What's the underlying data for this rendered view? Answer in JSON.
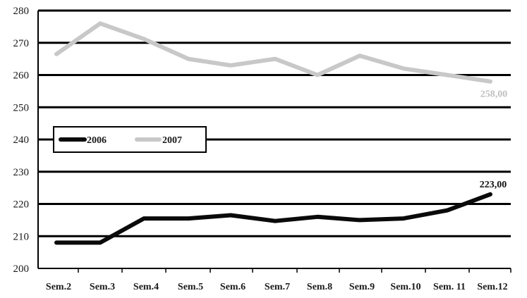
{
  "chart_data": {
    "type": "line",
    "title": "",
    "xlabel": "",
    "ylabel": "",
    "categories": [
      "Sem.2",
      "Sem.3",
      "Sem.4",
      "Sem.5",
      "Sem.6",
      "Sem.7",
      "Sem.8",
      "Sem.9",
      "Sem.10",
      "Sem. 11",
      "Sem.12"
    ],
    "ylim": [
      200,
      280
    ],
    "yticks": [
      "200",
      "210",
      "220",
      "230",
      "240",
      "250",
      "260",
      "270",
      "280"
    ],
    "grid": true,
    "legend_position": "middle-left",
    "series": [
      {
        "name": "2006",
        "color": "#0a0a0a",
        "values": [
          208,
          208,
          215.5,
          215.5,
          216.5,
          214.7,
          216,
          215,
          215.5,
          218,
          223
        ],
        "end_label": "223,00"
      },
      {
        "name": "2007",
        "color": "#c8c8c8",
        "values": [
          266.5,
          276,
          271.2,
          265,
          263,
          265,
          260,
          266,
          262,
          260,
          258
        ],
        "end_label": "258,00"
      }
    ]
  }
}
